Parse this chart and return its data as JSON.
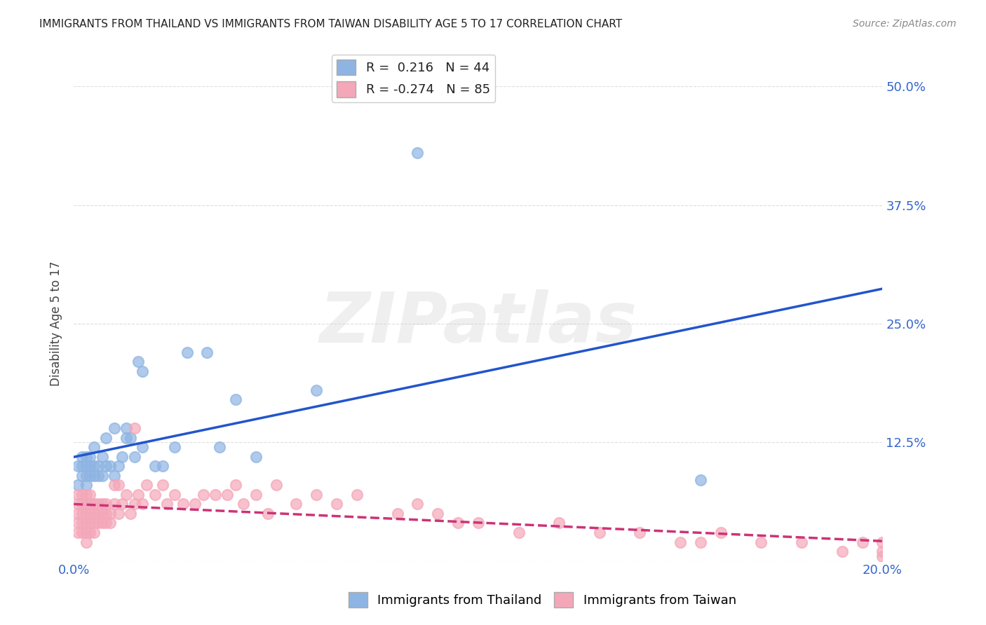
{
  "title": "IMMIGRANTS FROM THAILAND VS IMMIGRANTS FROM TAIWAN DISABILITY AGE 5 TO 17 CORRELATION CHART",
  "source": "Source: ZipAtlas.com",
  "xlabel": "",
  "ylabel": "Disability Age 5 to 17",
  "xlim": [
    0.0,
    0.2
  ],
  "ylim": [
    0.0,
    0.5
  ],
  "yticks": [
    0.0,
    0.125,
    0.25,
    0.375,
    0.5
  ],
  "ytick_labels": [
    "",
    "12.5%",
    "25.0%",
    "37.5%",
    "50.0%"
  ],
  "xticks": [
    0.0,
    0.05,
    0.1,
    0.15,
    0.2
  ],
  "xtick_labels": [
    "0.0%",
    "",
    "",
    "",
    "20.0%"
  ],
  "background_color": "#ffffff",
  "grid_color": "#dddddd",
  "thailand_color": "#8eb4e3",
  "taiwan_color": "#f4a7b9",
  "thailand_line_color": "#2255cc",
  "taiwan_line_color": "#cc3377",
  "thailand_R": 0.216,
  "thailand_N": 44,
  "taiwan_R": -0.274,
  "taiwan_N": 85,
  "thailand_x": [
    0.001,
    0.001,
    0.002,
    0.002,
    0.002,
    0.003,
    0.003,
    0.003,
    0.003,
    0.004,
    0.004,
    0.004,
    0.005,
    0.005,
    0.005,
    0.006,
    0.006,
    0.007,
    0.007,
    0.008,
    0.008,
    0.009,
    0.01,
    0.01,
    0.011,
    0.012,
    0.013,
    0.013,
    0.014,
    0.015,
    0.016,
    0.017,
    0.017,
    0.02,
    0.022,
    0.025,
    0.028,
    0.033,
    0.036,
    0.04,
    0.045,
    0.06,
    0.085,
    0.155
  ],
  "thailand_y": [
    0.08,
    0.1,
    0.09,
    0.11,
    0.1,
    0.08,
    0.09,
    0.1,
    0.11,
    0.09,
    0.1,
    0.11,
    0.09,
    0.1,
    0.12,
    0.09,
    0.1,
    0.09,
    0.11,
    0.1,
    0.13,
    0.1,
    0.09,
    0.14,
    0.1,
    0.11,
    0.14,
    0.13,
    0.13,
    0.11,
    0.21,
    0.2,
    0.12,
    0.1,
    0.1,
    0.12,
    0.22,
    0.22,
    0.12,
    0.17,
    0.11,
    0.18,
    0.43,
    0.085
  ],
  "taiwan_x": [
    0.001,
    0.001,
    0.001,
    0.001,
    0.001,
    0.002,
    0.002,
    0.002,
    0.002,
    0.002,
    0.003,
    0.003,
    0.003,
    0.003,
    0.003,
    0.003,
    0.004,
    0.004,
    0.004,
    0.004,
    0.004,
    0.005,
    0.005,
    0.005,
    0.005,
    0.006,
    0.006,
    0.006,
    0.007,
    0.007,
    0.007,
    0.008,
    0.008,
    0.008,
    0.009,
    0.009,
    0.01,
    0.01,
    0.011,
    0.011,
    0.012,
    0.013,
    0.014,
    0.015,
    0.015,
    0.016,
    0.017,
    0.018,
    0.02,
    0.022,
    0.023,
    0.025,
    0.027,
    0.03,
    0.032,
    0.035,
    0.038,
    0.04,
    0.042,
    0.045,
    0.048,
    0.05,
    0.055,
    0.06,
    0.065,
    0.07,
    0.08,
    0.085,
    0.09,
    0.095,
    0.1,
    0.11,
    0.12,
    0.13,
    0.14,
    0.15,
    0.155,
    0.16,
    0.17,
    0.18,
    0.19,
    0.195,
    0.2,
    0.2,
    0.2
  ],
  "taiwan_y": [
    0.05,
    0.06,
    0.07,
    0.04,
    0.03,
    0.05,
    0.06,
    0.07,
    0.04,
    0.03,
    0.05,
    0.06,
    0.07,
    0.04,
    0.03,
    0.02,
    0.05,
    0.06,
    0.07,
    0.04,
    0.03,
    0.05,
    0.06,
    0.04,
    0.03,
    0.05,
    0.06,
    0.04,
    0.05,
    0.06,
    0.04,
    0.05,
    0.06,
    0.04,
    0.05,
    0.04,
    0.08,
    0.06,
    0.08,
    0.05,
    0.06,
    0.07,
    0.05,
    0.14,
    0.06,
    0.07,
    0.06,
    0.08,
    0.07,
    0.08,
    0.06,
    0.07,
    0.06,
    0.06,
    0.07,
    0.07,
    0.07,
    0.08,
    0.06,
    0.07,
    0.05,
    0.08,
    0.06,
    0.07,
    0.06,
    0.07,
    0.05,
    0.06,
    0.05,
    0.04,
    0.04,
    0.03,
    0.04,
    0.03,
    0.03,
    0.02,
    0.02,
    0.03,
    0.02,
    0.02,
    0.01,
    0.02,
    0.01,
    0.02,
    0.005
  ],
  "watermark": "ZIPatlas",
  "legend_thailand_label": "Immigrants from Thailand",
  "legend_taiwan_label": "Immigrants from Taiwan"
}
